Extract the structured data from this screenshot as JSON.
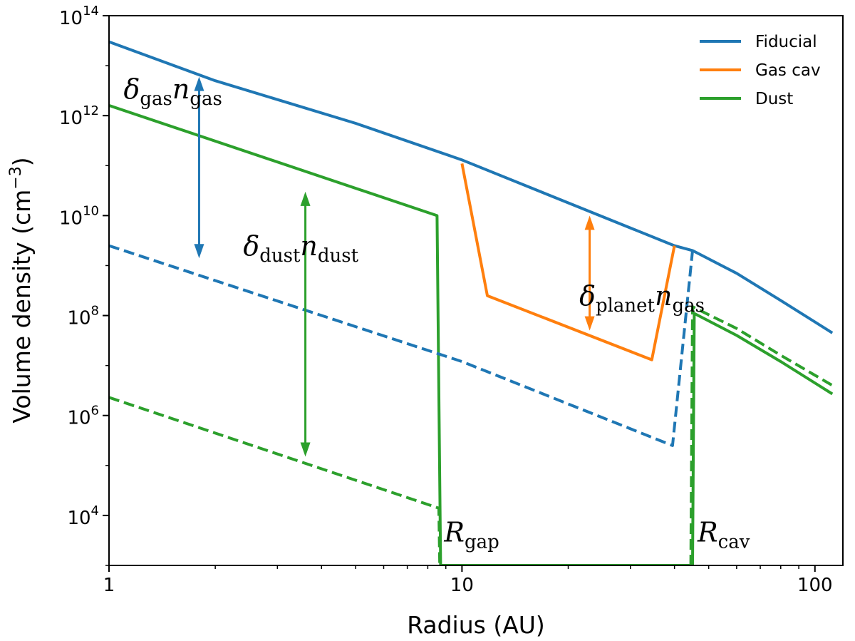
{
  "chart_data": {
    "type": "line",
    "xlabel": "Radius (AU)",
    "ylabel_main": "Volume density (cm",
    "ylabel_exp": "−3",
    "ylabel_close": ")",
    "x_scale": "log",
    "y_scale": "log",
    "xlim": [
      1,
      120
    ],
    "ylim": [
      1000,
      100000000000000
    ],
    "grid": false,
    "legend_position": "top-right",
    "x_ticks": [
      {
        "value": 1,
        "label": "1"
      },
      {
        "value": 10,
        "label": "10"
      },
      {
        "value": 100,
        "label": "100"
      }
    ],
    "y_ticks": [
      {
        "value": 10000,
        "base": "10",
        "exp": "4"
      },
      {
        "value": 1000000,
        "base": "10",
        "exp": "6"
      },
      {
        "value": 100000000,
        "base": "10",
        "exp": "8"
      },
      {
        "value": 10000000000,
        "base": "10",
        "exp": "10"
      },
      {
        "value": 1000000000000,
        "base": "10",
        "exp": "12"
      },
      {
        "value": 100000000000000,
        "base": "10",
        "exp": "14"
      }
    ],
    "series": [
      {
        "name": "Fiducial",
        "color": "#1f77b4",
        "style": "solid",
        "in_legend": true,
        "points": [
          [
            1,
            30000000000000.0
          ],
          [
            2,
            5000000000000.0
          ],
          [
            5,
            700000000000.0
          ],
          [
            10,
            130000000000.0
          ],
          [
            20,
            18000000000.0
          ],
          [
            40,
            2500000000.0
          ],
          [
            45,
            2000000000.0
          ],
          [
            60,
            700000000.0
          ],
          [
            80,
            200000000.0
          ],
          [
            112,
            45000000.0
          ]
        ]
      },
      {
        "name": "Gas cav",
        "color": "#ff7f0e",
        "style": "solid",
        "in_legend": true,
        "points": [
          [
            10,
            110000000000.0
          ],
          [
            11.8,
            250000000.0
          ],
          [
            34.5,
            13000000.0
          ],
          [
            40,
            2500000000.0
          ]
        ]
      },
      {
        "name": "Dust",
        "color": "#2ca02c",
        "style": "solid",
        "in_legend": true,
        "points": [
          [
            1,
            1600000000000.0
          ],
          [
            8.5,
            10000000000.0
          ],
          [
            8.7,
            1000
          ],
          [
            45,
            1000
          ],
          [
            45.5,
            110000000.0
          ],
          [
            60,
            40000000.0
          ],
          [
            80,
            12000000.0
          ],
          [
            112,
            2700000.0
          ]
        ]
      },
      {
        "color": "#1f77b4",
        "style": "dashed",
        "in_legend": false,
        "points": [
          [
            1,
            2500000000.0
          ],
          [
            10,
            12000000.0
          ],
          [
            39.5,
            250000.0
          ],
          [
            45,
            2000000000.0
          ]
        ]
      },
      {
        "color": "#2ca02c",
        "style": "dashed",
        "in_legend": false,
        "points": [
          [
            1,
            2300000.0
          ],
          [
            8.6,
            14000.0
          ],
          [
            8.65,
            1000
          ]
        ]
      },
      {
        "color": "#2ca02c",
        "style": "dashed",
        "in_legend": false,
        "points": [
          [
            44.5,
            1000
          ],
          [
            45,
            150000000.0
          ],
          [
            60,
            55000000.0
          ],
          [
            80,
            16000000.0
          ],
          [
            112,
            4000000.0
          ]
        ]
      }
    ],
    "annotations": [
      {
        "italic": "δ",
        "sub1": "gas",
        "italic2": "n",
        "sub2": "gas",
        "x": 1.1,
        "y": 2200000000000.0,
        "color": "#1f77b4",
        "arrow_x": 1.8,
        "arrow_y": [
          6000000000000.0,
          1400000000.0
        ]
      },
      {
        "italic": "δ",
        "sub1": "dust",
        "italic2": "n",
        "sub2": "dust",
        "x": 2.4,
        "y": 1600000000.0,
        "color": "#2ca02c",
        "arrow_x": 3.6,
        "arrow_y": [
          30000000000.0,
          150000.0
        ]
      },
      {
        "italic": "δ",
        "sub1": "planet",
        "italic2": "n",
        "sub2": "gas",
        "x": 21.5,
        "y": 160000000.0,
        "color": "#ff7f0e",
        "arrow_x": 23,
        "arrow_y": [
          10000000000.0,
          50000000.0
        ]
      },
      {
        "italic": "R",
        "sub1": "gap",
        "x": 8.9,
        "y": 3000
      },
      {
        "italic": "R",
        "sub1": "cav",
        "x": 46.5,
        "y": 3000
      }
    ]
  }
}
